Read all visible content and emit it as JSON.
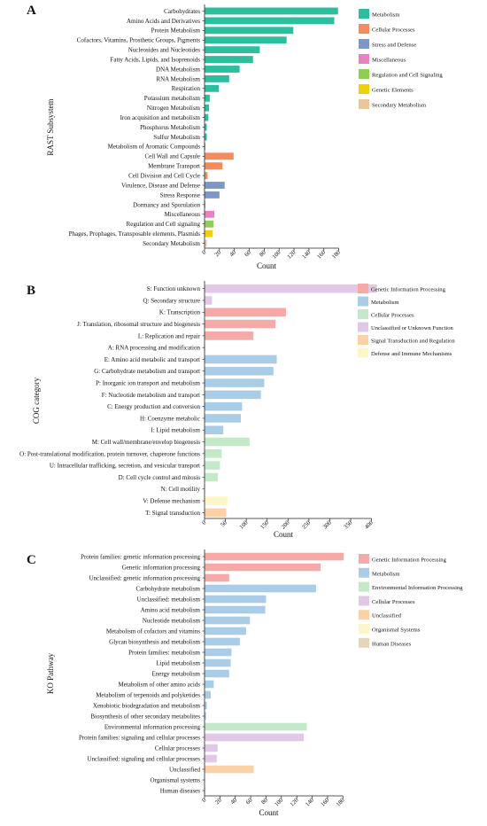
{
  "chart_data": [
    {
      "type": "bar",
      "orientation": "horizontal",
      "panel_label": "A",
      "xlabel": "Count",
      "ylabel": "RAST Subsystem",
      "xlim": [
        0,
        190
      ],
      "xticks": [
        0,
        20,
        40,
        60,
        80,
        100,
        120,
        140,
        160,
        180
      ],
      "grid": false,
      "legend_position": "right",
      "legend": [
        {
          "name": "Metabolism",
          "color": "#2bbf9e"
        },
        {
          "name": "Cellular Processes",
          "color": "#f58b5c"
        },
        {
          "name": "Stress and Defense",
          "color": "#7e97c8"
        },
        {
          "name": "Miscellaneous",
          "color": "#ee7fc0"
        },
        {
          "name": "Regulation and Cell Signaling",
          "color": "#8fcf4f"
        },
        {
          "name": "Genetic Elements",
          "color": "#f5d000"
        },
        {
          "name": "Secondary Metabolism",
          "color": "#e9c79b"
        }
      ],
      "bars": [
        {
          "label": "Carbohydrates",
          "value": 179,
          "group": 0
        },
        {
          "label": "Amino Acids and Derivatives",
          "value": 174,
          "group": 0
        },
        {
          "label": "Protein Metabolism",
          "value": 119,
          "group": 0
        },
        {
          "label": "Cofactors, Vitamins, Prosthetic Groups, Pigments",
          "value": 110,
          "group": 0
        },
        {
          "label": "Nucleosides and Nucleotides",
          "value": 74,
          "group": 0
        },
        {
          "label": "Fatty Acids, Lipids, and Isoprenoids",
          "value": 65,
          "group": 0
        },
        {
          "label": "DNA Metabolism",
          "value": 47,
          "group": 0
        },
        {
          "label": "RNA Metabolism",
          "value": 33,
          "group": 0
        },
        {
          "label": "Respiration",
          "value": 19,
          "group": 0
        },
        {
          "label": "Potassium metabolism",
          "value": 7,
          "group": 0
        },
        {
          "label": "Nitrogen Metabolism",
          "value": 6,
          "group": 0
        },
        {
          "label": "Iron acquisition and metabolism",
          "value": 5,
          "group": 0
        },
        {
          "label": "Phosphorus Metabolism",
          "value": 3,
          "group": 0
        },
        {
          "label": "Sulfur Metabolism",
          "value": 3,
          "group": 0
        },
        {
          "label": "Metabolism of Aromatic Compounds",
          "value": 1,
          "group": 0
        },
        {
          "label": "Cell Wall and Capsule",
          "value": 39,
          "group": 1
        },
        {
          "label": "Membrane Transport",
          "value": 24,
          "group": 1
        },
        {
          "label": "Cell Division and Cell Cycle",
          "value": 4,
          "group": 1
        },
        {
          "label": "Virulence, Disease and Defense",
          "value": 27,
          "group": 2
        },
        {
          "label": "Stress Response",
          "value": 20,
          "group": 2
        },
        {
          "label": "Dormancy and Sporulation",
          "value": 1,
          "group": 2
        },
        {
          "label": "Miscellaneous",
          "value": 13,
          "group": 3
        },
        {
          "label": "Regulation and Cell signaling",
          "value": 12,
          "group": 4
        },
        {
          "label": "Phages, Prophages, Transposable elements, Plasmids",
          "value": 11,
          "group": 5
        },
        {
          "label": "Secondary Metabolism",
          "value": 3,
          "group": 6
        }
      ]
    },
    {
      "type": "bar",
      "orientation": "horizontal",
      "panel_label": "B",
      "xlabel": "Count",
      "ylabel": "COG category",
      "xlim": [
        0,
        420
      ],
      "xticks": [
        0,
        50,
        100,
        150,
        200,
        250,
        300,
        350,
        400
      ],
      "grid": false,
      "legend_position": "right",
      "legend": [
        {
          "name": "Genetic Information Processing",
          "color": "#f6aaa7"
        },
        {
          "name": "Metabolism",
          "color": "#a9cde6"
        },
        {
          "name": "Cellular Processes",
          "color": "#c3e9c8"
        },
        {
          "name": "Unclassified or Unknown Function",
          "color": "#e1c8e6"
        },
        {
          "name": "Signal Transduction and Regulation",
          "color": "#fbd2a6"
        },
        {
          "name": "Defense and Immune Mechanisms",
          "color": "#fcf7c6"
        }
      ],
      "bars": [
        {
          "label": "S: Function unknown",
          "value": 413,
          "group": 3
        },
        {
          "label": "Q: Secondary structure",
          "value": 18,
          "group": 3
        },
        {
          "label": "K: Transcription",
          "value": 195,
          "group": 0
        },
        {
          "label": "J: Translation, ribosomal structure and biogenesis",
          "value": 170,
          "group": 0
        },
        {
          "label": "L: Replication and repair",
          "value": 117,
          "group": 0
        },
        {
          "label": "A: RNA processing and modification",
          "value": 1,
          "group": 0
        },
        {
          "label": "E: Amino acid metabolic and transport",
          "value": 173,
          "group": 1
        },
        {
          "label": "G: Carbohydrate metabolism and transport",
          "value": 165,
          "group": 1
        },
        {
          "label": "P: Inorganic ion transport and metabolism",
          "value": 143,
          "group": 1
        },
        {
          "label": "F: Nucleotide metabolism and transport",
          "value": 135,
          "group": 1
        },
        {
          "label": "C: Energy production and conversion",
          "value": 90,
          "group": 1
        },
        {
          "label": "H: Coenzyme metabolic",
          "value": 87,
          "group": 1
        },
        {
          "label": "I: Lipid metabolism",
          "value": 45,
          "group": 1
        },
        {
          "label": "M: Cell wall/membrane/envelop biogenesis",
          "value": 108,
          "group": 2
        },
        {
          "label": "O: Post-translational modification, protein turnover, chaperone functions",
          "value": 41,
          "group": 2
        },
        {
          "label": "U: Intracellular trafficking, secretion, and vesicular transport",
          "value": 37,
          "group": 2
        },
        {
          "label": "D: Cell cycle control and mitosis",
          "value": 32,
          "group": 2
        },
        {
          "label": "N: Cell motility",
          "value": 1,
          "group": 2
        },
        {
          "label": "V: Defense mechanism",
          "value": 55,
          "group": 5
        },
        {
          "label": "T: Signal transduction",
          "value": 52,
          "group": 4
        }
      ]
    },
    {
      "type": "bar",
      "orientation": "horizontal",
      "panel_label": "C",
      "xlabel": "Count",
      "ylabel": "KO Pathway",
      "xlim": [
        0,
        190
      ],
      "xticks": [
        0,
        20,
        40,
        60,
        80,
        100,
        120,
        140,
        160,
        180
      ],
      "grid": false,
      "legend_position": "right",
      "legend": [
        {
          "name": "Genetic Information Processing",
          "color": "#f6aaa7"
        },
        {
          "name": "Metabolism",
          "color": "#a9cde6"
        },
        {
          "name": "Environmental Information Processing",
          "color": "#c3e9c8"
        },
        {
          "name": "Cellular Processes",
          "color": "#e1c8e6"
        },
        {
          "name": "Unclassified",
          "color": "#fbd2a6"
        },
        {
          "name": "Organismal Systems",
          "color": "#fcf7c6"
        },
        {
          "name": "Human Diseases",
          "color": "#e6d6b8"
        }
      ],
      "bars": [
        {
          "label": "Protein families: genetic information processing",
          "value": 181,
          "group": 0
        },
        {
          "label": "Genetic information processing",
          "value": 151,
          "group": 0
        },
        {
          "label": "Unclassified: genetic information processing",
          "value": 32,
          "group": 0
        },
        {
          "label": "Carbohydrate metabolism",
          "value": 145,
          "group": 1
        },
        {
          "label": "Unclassified: metabolism",
          "value": 80,
          "group": 1
        },
        {
          "label": "Amino acid metabolism",
          "value": 79,
          "group": 1
        },
        {
          "label": "Nucleotide metabolism",
          "value": 59,
          "group": 1
        },
        {
          "label": "Metabolism of cofactors and vitamins",
          "value": 54,
          "group": 1
        },
        {
          "label": "Glycan biosynthesis and metabolism",
          "value": 46,
          "group": 1
        },
        {
          "label": "Protein families: metabolism",
          "value": 35,
          "group": 1
        },
        {
          "label": "Lipid metabolism",
          "value": 34,
          "group": 1
        },
        {
          "label": "Energy metabolism",
          "value": 32,
          "group": 1
        },
        {
          "label": "Metabolism of other amino acids",
          "value": 12,
          "group": 1
        },
        {
          "label": "Metabolism of terpenoids and polyketides",
          "value": 8,
          "group": 1
        },
        {
          "label": "Xenobiotic biodegradation and metabolism",
          "value": 3,
          "group": 1
        },
        {
          "label": "Biosynthesis of other secondary metabolites",
          "value": 2,
          "group": 1
        },
        {
          "label": "Environmental information processing",
          "value": 133,
          "group": 2
        },
        {
          "label": "Protein families: signaling and cellular processes",
          "value": 129,
          "group": 3
        },
        {
          "label": "Cellular processes",
          "value": 17,
          "group": 3
        },
        {
          "label": "Unclassified: signaling and cellular processes",
          "value": 16,
          "group": 3
        },
        {
          "label": "Unclassified",
          "value": 64,
          "group": 4
        },
        {
          "label": "Organismal systems",
          "value": 1,
          "group": 5
        },
        {
          "label": "Human diseases",
          "value": 1,
          "group": 6
        }
      ]
    }
  ]
}
